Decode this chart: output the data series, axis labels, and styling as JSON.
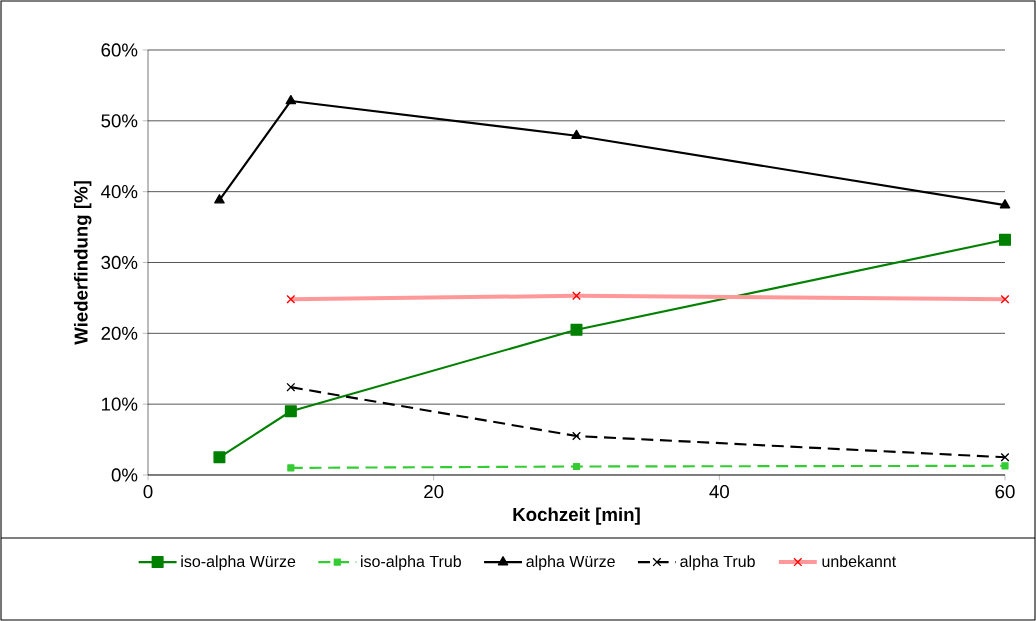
{
  "chart_data": {
    "type": "line",
    "xlabel": "Kochzeit [min]",
    "ylabel": "Wiederfindung [%]",
    "xlim": [
      0,
      60
    ],
    "xticks": [
      0,
      20,
      40,
      60
    ],
    "ylim": [
      0,
      60
    ],
    "yticks": [
      {
        "value": 0,
        "label": "0%"
      },
      {
        "value": 10,
        "label": "10%"
      },
      {
        "value": 20,
        "label": "20%"
      },
      {
        "value": 30,
        "label": "30%"
      },
      {
        "value": 40,
        "label": "40%"
      },
      {
        "value": 50,
        "label": "50%"
      },
      {
        "value": 60,
        "label": "60%"
      }
    ],
    "grid": "y",
    "legend": "bottom",
    "series": [
      {
        "name": "iso-alpha Würze",
        "color": "#008000",
        "marker": "square",
        "line_style": "solid",
        "x": [
          5,
          10,
          30,
          60
        ],
        "values": [
          2.5,
          9.0,
          20.5,
          33.2
        ]
      },
      {
        "name": "iso-alpha Trub",
        "color": "#33cc33",
        "marker": "square",
        "line_style": "dashed",
        "x": [
          10,
          30,
          60
        ],
        "values": [
          1.0,
          1.2,
          1.3
        ]
      },
      {
        "name": "alpha Würze",
        "color": "#000000",
        "marker": "triangle",
        "line_style": "solid",
        "x": [
          5,
          10,
          30,
          60
        ],
        "values": [
          38.8,
          52.8,
          47.9,
          38.1
        ]
      },
      {
        "name": "alpha Trub",
        "color": "#000000",
        "marker": "cross",
        "line_style": "dashed",
        "x": [
          10,
          30,
          60
        ],
        "values": [
          12.4,
          5.5,
          2.5
        ]
      },
      {
        "name": "unbekannt",
        "color": "#ff9999",
        "marker": "cross",
        "line_style": "solid",
        "x": [
          10,
          30,
          60
        ],
        "values": [
          24.8,
          25.3,
          24.8
        ]
      }
    ]
  }
}
